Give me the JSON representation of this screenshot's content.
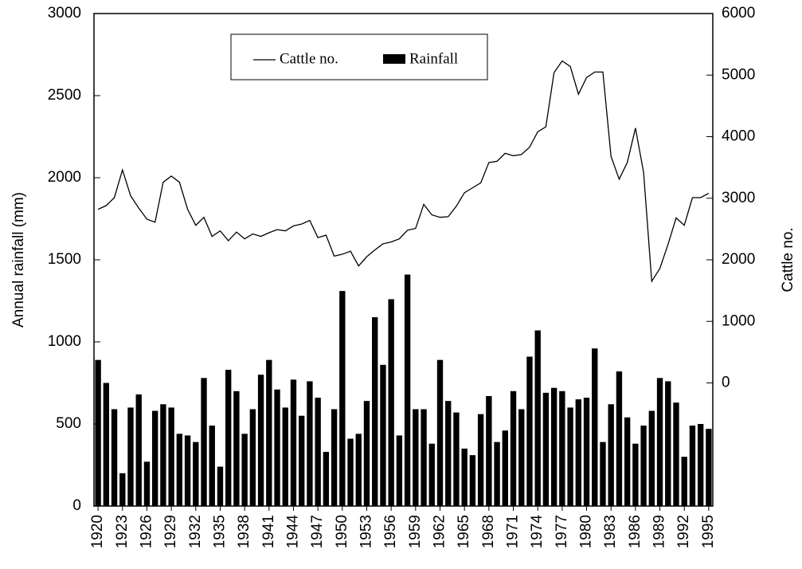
{
  "chart_data": {
    "type": "bar",
    "y_label": "Annual rainfall (mm)",
    "y2_label": "Cattle no.",
    "categories": [
      "1920",
      null,
      null,
      "1923",
      null,
      null,
      "1926",
      null,
      null,
      "1929",
      null,
      null,
      "1932",
      null,
      null,
      "1935",
      null,
      null,
      "1938",
      null,
      null,
      "1941",
      null,
      null,
      "1944",
      null,
      null,
      "1947",
      null,
      null,
      "1950",
      null,
      null,
      "1953",
      null,
      null,
      "1956",
      null,
      null,
      "1959",
      null,
      null,
      "1962",
      null,
      null,
      "1965",
      null,
      null,
      "1968",
      null,
      null,
      "1971",
      null,
      null,
      "1974",
      null,
      null,
      "1977",
      null,
      null,
      "1980",
      null,
      null,
      "1983",
      null,
      null,
      "1986",
      null,
      null,
      "1989",
      null,
      null,
      "1992",
      null,
      null,
      "1995"
    ],
    "series": [
      {
        "name": "Cattle no.",
        "type": "line",
        "axis": "y2",
        "color": "#000000",
        "values": [
          2820,
          2880,
          3010,
          3460,
          3040,
          2840,
          2660,
          2610,
          3260,
          3360,
          3260,
          2820,
          2560,
          2690,
          2380,
          2470,
          2310,
          2450,
          2340,
          2420,
          2380,
          2440,
          2490,
          2470,
          2550,
          2580,
          2640,
          2360,
          2400,
          2060,
          2090,
          2140,
          1900,
          2050,
          2160,
          2260,
          2290,
          2340,
          2480,
          2510,
          2900,
          2730,
          2690,
          2700,
          2870,
          3090,
          3170,
          3250,
          3580,
          3600,
          3730,
          3690,
          3710,
          3830,
          4080,
          4160,
          5040,
          5230,
          5140,
          4690,
          4960,
          5050,
          5050,
          3680,
          3310,
          3580,
          4140,
          3420,
          1650,
          1860,
          2250,
          2680,
          2560,
          3010,
          3010,
          3080
        ]
      },
      {
        "name": "Rainfall",
        "type": "bar",
        "color": "#000000",
        "values": [
          890,
          750,
          590,
          200,
          600,
          680,
          270,
          580,
          620,
          600,
          440,
          430,
          390,
          780,
          490,
          240,
          830,
          700,
          440,
          590,
          800,
          890,
          710,
          600,
          770,
          550,
          760,
          660,
          330,
          590,
          1310,
          410,
          440,
          640,
          1150,
          860,
          1260,
          430,
          1410,
          590,
          590,
          380,
          890,
          640,
          570,
          350,
          310,
          560,
          670,
          390,
          460,
          700,
          590,
          910,
          1070,
          690,
          720,
          700,
          600,
          650,
          660,
          960,
          390,
          620,
          820,
          540,
          380,
          490,
          580,
          780,
          760,
          630,
          300,
          490,
          500,
          470
        ]
      }
    ],
    "ylim": [
      0,
      3000
    ],
    "yticks": [
      0,
      500,
      1000,
      1500,
      2000,
      2500,
      3000
    ],
    "y2lim": [
      -2000,
      6000
    ],
    "y2ticks": [
      0,
      1000,
      2000,
      3000,
      4000,
      5000,
      6000
    ],
    "legend": "top"
  }
}
